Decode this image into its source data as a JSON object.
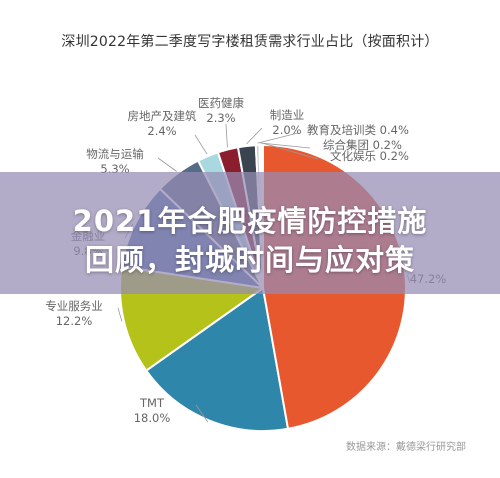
{
  "page": {
    "source_note": "数据来源：戴德梁行研究部",
    "overlay": {
      "line1": "2021年合肥疫情防控措施",
      "line2": "回顾，封城时间与应对策"
    }
  },
  "chart_data": {
    "type": "pie",
    "title": "深圳2022年第二季度写字楼租赁需求行业占比（按面积计）",
    "unit": "%",
    "slices": [
      {
        "label": "TMT",
        "value": 18.0,
        "value_label": "18.0%",
        "color": "#2E86AB"
      },
      {
        "label": "专业服务业",
        "value": 12.2,
        "value_label": "12.2%",
        "color": "#B5C21A"
      },
      {
        "label": "金融业",
        "value": 9.8,
        "value_label": "9.8%",
        "color": "#4E6FA8"
      },
      {
        "label": "物流与运输",
        "value": 5.3,
        "value_label": "5.3%",
        "color": "#566C86"
      },
      {
        "label": "房地产及建筑",
        "value": 2.4,
        "value_label": "2.4%",
        "color": "#A8D8E0"
      },
      {
        "label": "医药健康",
        "value": 2.3,
        "value_label": "2.3%",
        "color": "#8A1E2C"
      },
      {
        "label": "制造业",
        "value": 2.0,
        "value_label": "2.0%",
        "color": "#3A4450"
      },
      {
        "label": "教育及培训类",
        "value": 0.4,
        "value_label": "0.4%",
        "color": "#C9C9C9"
      },
      {
        "label": "综合集团",
        "value": 0.2,
        "value_label": "0.2%",
        "color": "#E1B44C"
      },
      {
        "label": "文化娱乐",
        "value": 0.2,
        "value_label": "0.2%",
        "color": "#7D7D7D"
      },
      {
        "label": "",
        "value": 47.2,
        "value_label": "47.2%",
        "color": "#E8582F"
      }
    ]
  }
}
